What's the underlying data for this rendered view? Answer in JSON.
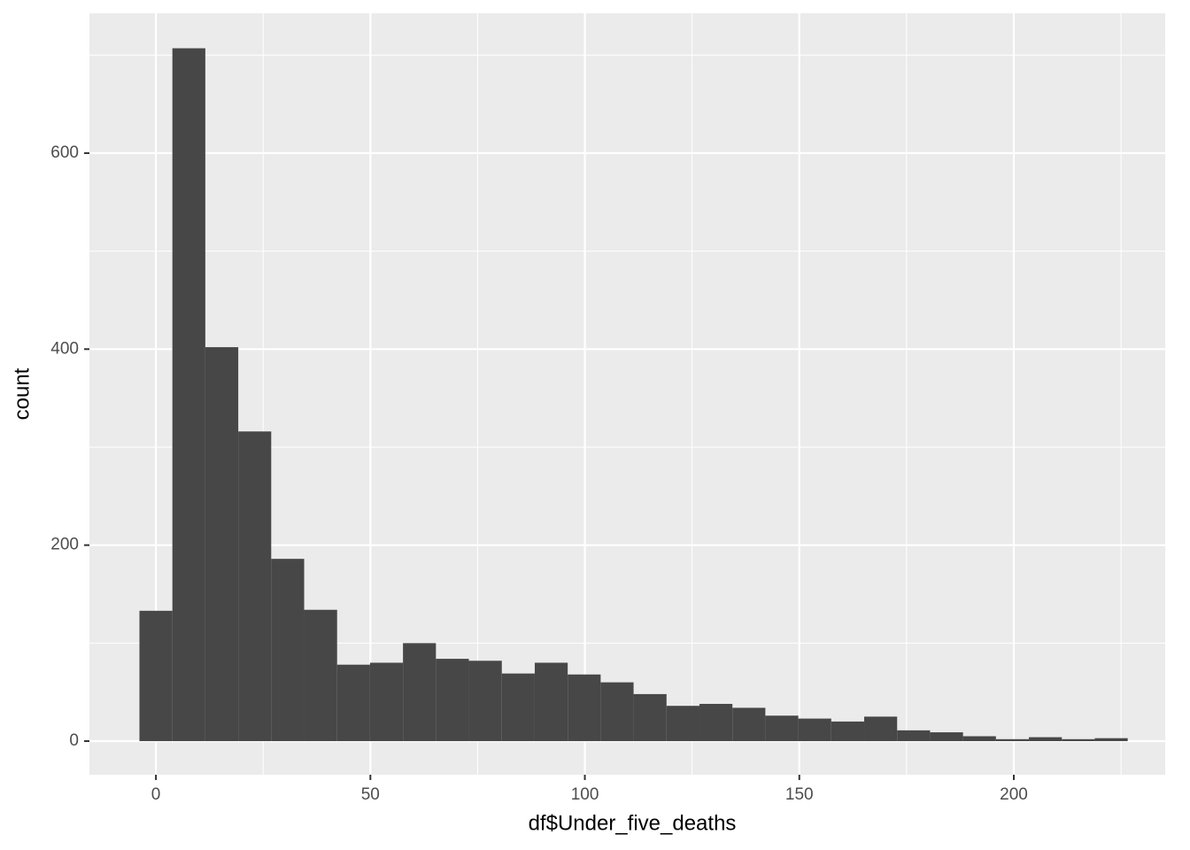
{
  "chart_data": {
    "type": "histogram",
    "x_label": "df$Under_five_deaths",
    "y_label": "count",
    "bins": [
      -3.84,
      3.84,
      11.52,
      19.2,
      26.88,
      34.56,
      42.24,
      49.92,
      57.6,
      65.28,
      72.96,
      80.64,
      88.32,
      96,
      103.68,
      111.36,
      119.04,
      126.72,
      134.4,
      142.08,
      149.76,
      157.44,
      165.12,
      172.8,
      180.48,
      188.16,
      195.84,
      203.52,
      211.2,
      218.88,
      226.56
    ],
    "values": [
      133,
      707,
      402,
      316,
      186,
      134,
      78,
      80,
      100,
      84,
      82,
      69,
      80,
      68,
      60,
      48,
      36,
      38,
      34,
      26,
      23,
      20,
      25,
      11,
      9,
      5,
      2,
      4,
      2,
      3
    ],
    "color": "#474747",
    "xlim": [
      -15.5,
      235.3
    ],
    "xticks": [
      0,
      50,
      100,
      150,
      200
    ],
    "ylim": [
      -34.3,
      742.7
    ],
    "yticks": [
      0,
      200,
      400,
      600
    ],
    "grid": true
  }
}
